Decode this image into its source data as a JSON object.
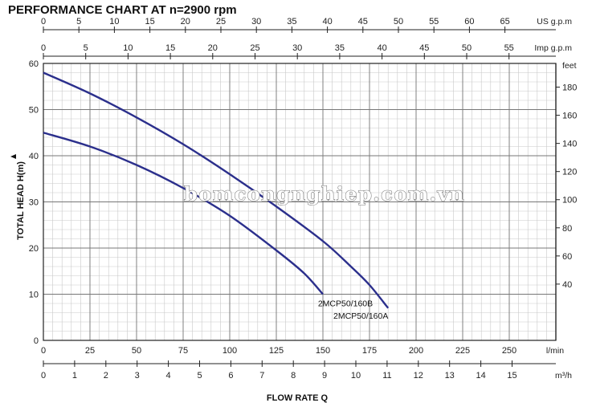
{
  "chart_data": {
    "type": "line",
    "title": "PERFORMANCE CHART AT n=2900 rpm",
    "xlabel": "FLOW RATE Q",
    "ylabel": "TOTAL HEAD H(m)",
    "x_unit": "l/min",
    "xlim": [
      0,
      275
    ],
    "ylim": [
      0,
      60
    ],
    "x_ticks": [
      "0",
      "25",
      "50",
      "75",
      "100",
      "125",
      "150",
      "175",
      "200",
      "225",
      "250"
    ],
    "y_ticks": [
      "0",
      "10",
      "20",
      "30",
      "40",
      "50",
      "60"
    ],
    "secondary_axes": {
      "usgpm": {
        "label": "US g.p.m",
        "ticks": [
          "0",
          "5",
          "10",
          "15",
          "20",
          "25",
          "30",
          "35",
          "40",
          "45",
          "50",
          "55",
          "60",
          "65"
        ]
      },
      "impgpm": {
        "label": "Imp g.p.m",
        "ticks": [
          "0",
          "5",
          "10",
          "15",
          "20",
          "25",
          "30",
          "35",
          "40",
          "45",
          "50",
          "55"
        ]
      },
      "m3h": {
        "label": "m³/h",
        "ticks": [
          "0",
          "1",
          "2",
          "3",
          "4",
          "5",
          "6",
          "7",
          "8",
          "9",
          "10",
          "11",
          "12",
          "13",
          "14",
          "15"
        ]
      },
      "feet": {
        "label": "feet",
        "ticks": [
          "40",
          "60",
          "80",
          "100",
          "120",
          "140",
          "160",
          "180"
        ]
      }
    },
    "grid": true,
    "series": [
      {
        "name": "2MCP50/160A",
        "color": "#2b2f8c",
        "x": [
          0,
          25,
          50,
          75,
          100,
          125,
          150,
          165,
          175,
          185
        ],
        "y": [
          58,
          53.5,
          48.3,
          42.5,
          36,
          29,
          21.5,
          16,
          12,
          7
        ]
      },
      {
        "name": "2MCP50/160B",
        "color": "#2b2f8c",
        "x": [
          0,
          25,
          50,
          75,
          100,
          125,
          140,
          150
        ],
        "y": [
          45,
          42,
          38,
          33,
          27,
          19.5,
          14.5,
          10
        ]
      }
    ]
  },
  "watermark": "bomcongnghiep.com.vn"
}
